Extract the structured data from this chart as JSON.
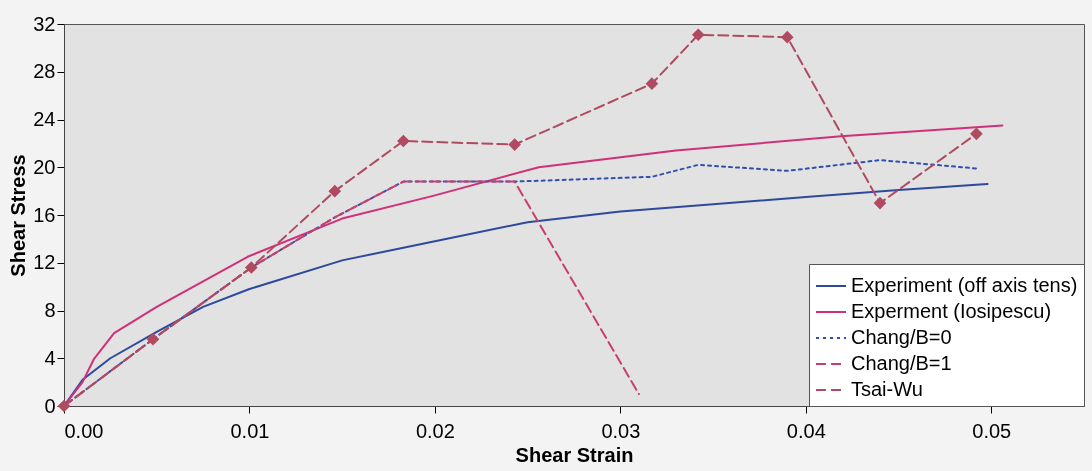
{
  "chart_data": {
    "type": "line",
    "xlabel": "Shear Strain",
    "ylabel": "Shear Stress",
    "xlim": [
      0,
      0.055
    ],
    "ylim": [
      0,
      32
    ],
    "xticks": [
      {
        "value": 0,
        "label": "0.00"
      },
      {
        "value": 0.01,
        "label": "0.01"
      },
      {
        "value": 0.02,
        "label": "0.02"
      },
      {
        "value": 0.03,
        "label": "0.03"
      },
      {
        "value": 0.04,
        "label": "0.04"
      },
      {
        "value": 0.05,
        "label": "0.05"
      }
    ],
    "yticks": [
      0,
      4,
      8,
      12,
      16,
      20,
      24,
      28,
      32
    ],
    "grid": false,
    "legend": "bottom right",
    "series": [
      {
        "name": "Experiment (off axis tens)",
        "color": "#2e4a9a",
        "line_style": "solid",
        "marker": "none",
        "x": [
          0,
          0.001,
          0.0025,
          0.005,
          0.0075,
          0.01,
          0.015,
          0.02,
          0.025,
          0.03,
          0.035,
          0.04,
          0.045,
          0.0498
        ],
        "values": [
          0,
          2.2,
          4,
          6.2,
          8.3,
          9.8,
          12.2,
          13.8,
          15.4,
          16.3,
          16.9,
          17.5,
          18.1,
          18.6
        ]
      },
      {
        "name": "Experment (Iosipescu)",
        "color": "#d0307a",
        "line_style": "solid",
        "marker": "none",
        "x": [
          0,
          0.001,
          0.0016,
          0.0027,
          0.005,
          0.0099,
          0.015,
          0.0199,
          0.0256,
          0.033,
          0.0419,
          0.0506
        ],
        "values": [
          0,
          2,
          3.9,
          6.1,
          8.3,
          12.5,
          15.7,
          17.6,
          20,
          21.4,
          22.6,
          23.5
        ]
      },
      {
        "name": "Chang/B=0",
        "color": "#3050b0",
        "line_style": "dotted",
        "marker": "none",
        "x": [
          0,
          0.0048,
          0.0101,
          0.0146,
          0.0183,
          0.0243,
          0.0317,
          0.0342,
          0.039,
          0.044,
          0.0492
        ],
        "values": [
          0,
          5.6,
          11.6,
          15.8,
          18.8,
          18.8,
          19.2,
          20.2,
          19.7,
          20.6,
          19.9
        ]
      },
      {
        "name": "Chang/B=1",
        "color": "#c8406a",
        "line_style": "dashed",
        "marker": "none",
        "x": [
          0,
          0.0048,
          0.0101,
          0.0146,
          0.0183,
          0.0243,
          0.031
        ],
        "values": [
          0,
          5.6,
          11.6,
          15.8,
          18.8,
          18.8,
          1
        ]
      },
      {
        "name": "Tsai-Wu",
        "color": "#b04a60",
        "line_style": "dashed",
        "marker": "diamond",
        "x": [
          0,
          0.0048,
          0.0101,
          0.0146,
          0.0183,
          0.0243,
          0.0317,
          0.0342,
          0.039,
          0.044,
          0.0492
        ],
        "values": [
          0,
          5.6,
          11.6,
          18,
          22.2,
          21.9,
          27,
          31.1,
          30.9,
          17,
          22.8
        ]
      }
    ]
  }
}
